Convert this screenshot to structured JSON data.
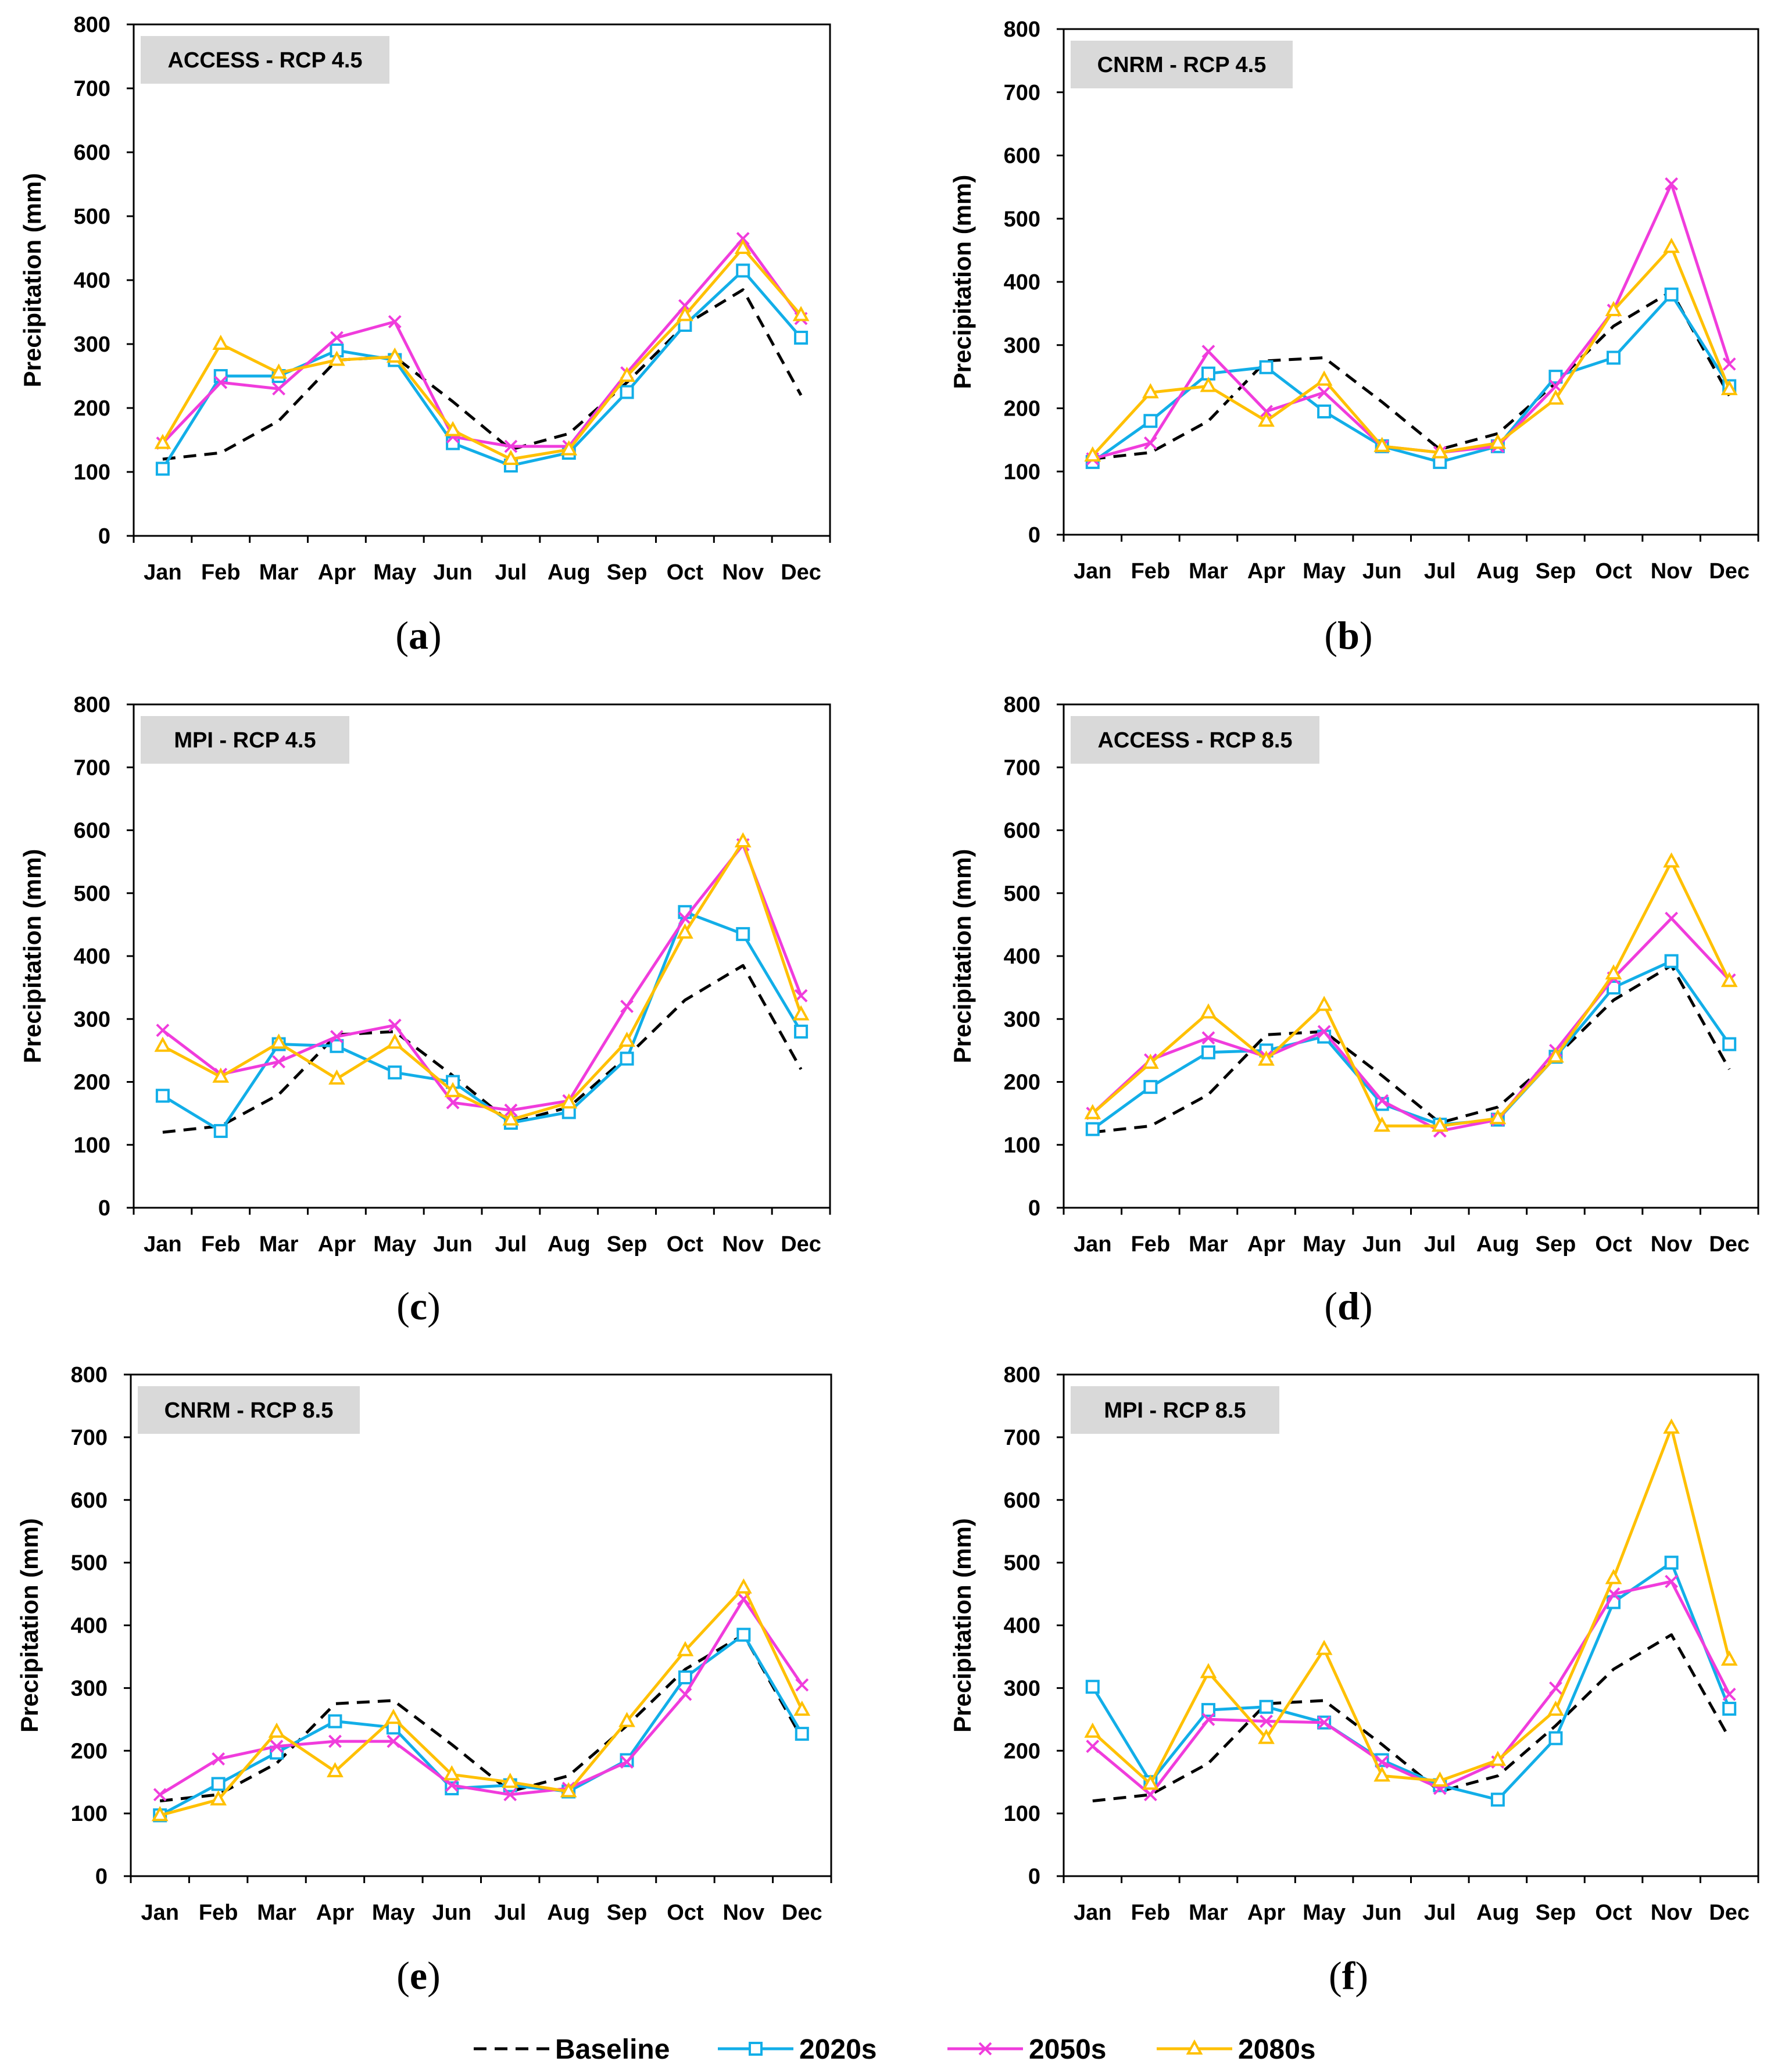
{
  "colors": {
    "baseline": "#000000",
    "s2020": "#12aee8",
    "s2050": "#f03cdc",
    "s2080": "#ffc000",
    "title_box": "#d9d9d9"
  },
  "legend": [
    {
      "key": "baseline",
      "label": "Baseline"
    },
    {
      "key": "s2020",
      "label": "2020s"
    },
    {
      "key": "s2050",
      "label": "2050s"
    },
    {
      "key": "s2080",
      "label": "2080s"
    }
  ],
  "chart_data": [
    {
      "type": "line",
      "caption": "a",
      "title": "ACCESS - RCP 4.5",
      "xlabel": "",
      "ylabel": "Precipitation (mm)",
      "ylim": [
        0,
        800
      ],
      "yticks": [
        0,
        100,
        200,
        300,
        400,
        500,
        600,
        700,
        800
      ],
      "categories": [
        "Jan",
        "Feb",
        "Mar",
        "Apr",
        "May",
        "Jun",
        "Jul",
        "Aug",
        "Sep",
        "Oct",
        "Nov",
        "Dec"
      ],
      "series": [
        {
          "name": "Baseline",
          "values": [
            120,
            130,
            180,
            275,
            280,
            210,
            135,
            160,
            240,
            330,
            385,
            220
          ]
        },
        {
          "name": "2020s",
          "values": [
            105,
            250,
            250,
            290,
            275,
            145,
            110,
            130,
            225,
            330,
            415,
            310
          ]
        },
        {
          "name": "2050s",
          "values": [
            145,
            240,
            230,
            310,
            335,
            155,
            140,
            140,
            255,
            360,
            465,
            340
          ]
        },
        {
          "name": "2080s",
          "values": [
            145,
            300,
            255,
            275,
            280,
            165,
            120,
            135,
            250,
            345,
            450,
            345
          ]
        }
      ]
    },
    {
      "type": "line",
      "caption": "b",
      "title": "CNRM - RCP 4.5",
      "xlabel": "",
      "ylabel": "Precipitation (mm)",
      "ylim": [
        0,
        800
      ],
      "yticks": [
        0,
        100,
        200,
        300,
        400,
        500,
        600,
        700,
        800
      ],
      "categories": [
        "Jan",
        "Feb",
        "Mar",
        "Apr",
        "May",
        "Jun",
        "Jul",
        "Aug",
        "Sep",
        "Oct",
        "Nov",
        "Dec"
      ],
      "series": [
        {
          "name": "Baseline",
          "values": [
            120,
            130,
            180,
            275,
            280,
            210,
            135,
            160,
            240,
            330,
            385,
            220
          ]
        },
        {
          "name": "2020s",
          "values": [
            115,
            180,
            255,
            265,
            195,
            140,
            115,
            140,
            250,
            280,
            380,
            235
          ]
        },
        {
          "name": "2050s",
          "values": [
            120,
            145,
            290,
            195,
            225,
            140,
            130,
            140,
            235,
            355,
            555,
            270
          ]
        },
        {
          "name": "2080s",
          "values": [
            125,
            225,
            235,
            180,
            245,
            140,
            130,
            145,
            215,
            355,
            455,
            230
          ]
        }
      ]
    },
    {
      "type": "line",
      "caption": "c",
      "title": "MPI - RCP 4.5",
      "xlabel": "",
      "ylabel": "Precipitation (mm)",
      "ylim": [
        0,
        800
      ],
      "yticks": [
        0,
        100,
        200,
        300,
        400,
        500,
        600,
        700,
        800
      ],
      "categories": [
        "Jan",
        "Feb",
        "Mar",
        "Apr",
        "May",
        "Jun",
        "Jul",
        "Aug",
        "Sep",
        "Oct",
        "Nov",
        "Dec"
      ],
      "series": [
        {
          "name": "Baseline",
          "values": [
            120,
            130,
            180,
            275,
            280,
            210,
            135,
            160,
            240,
            330,
            385,
            220
          ]
        },
        {
          "name": "2020s",
          "values": [
            178,
            122,
            260,
            257,
            215,
            200,
            135,
            152,
            237,
            470,
            435,
            280
          ]
        },
        {
          "name": "2050s",
          "values": [
            282,
            212,
            232,
            272,
            290,
            167,
            155,
            170,
            320,
            460,
            577,
            337
          ]
        },
        {
          "name": "2080s",
          "values": [
            257,
            208,
            262,
            205,
            262,
            185,
            140,
            167,
            265,
            437,
            582,
            307
          ]
        }
      ]
    },
    {
      "type": "line",
      "caption": "d",
      "title": "ACCESS - RCP 8.5",
      "xlabel": "",
      "ylabel": "Precipitation (mm)",
      "ylim": [
        0,
        800
      ],
      "yticks": [
        0,
        100,
        200,
        300,
        400,
        500,
        600,
        700,
        800
      ],
      "categories": [
        "Jan",
        "Feb",
        "Mar",
        "Apr",
        "May",
        "Jun",
        "Jul",
        "Aug",
        "Sep",
        "Oct",
        "Nov",
        "Dec"
      ],
      "series": [
        {
          "name": "Baseline",
          "values": [
            120,
            130,
            180,
            275,
            280,
            210,
            135,
            160,
            240,
            330,
            385,
            220
          ]
        },
        {
          "name": "2020s",
          "values": [
            125,
            192,
            247,
            250,
            272,
            165,
            132,
            140,
            240,
            350,
            392,
            260
          ]
        },
        {
          "name": "2050s",
          "values": [
            150,
            235,
            270,
            240,
            280,
            170,
            122,
            140,
            250,
            365,
            460,
            362
          ]
        },
        {
          "name": "2080s",
          "values": [
            150,
            230,
            310,
            235,
            322,
            130,
            130,
            142,
            240,
            372,
            550,
            360
          ]
        }
      ]
    },
    {
      "type": "line",
      "caption": "e",
      "title": "CNRM - RCP 8.5",
      "xlabel": "",
      "ylabel": "Precipitation (mm)",
      "ylim": [
        0,
        800
      ],
      "yticks": [
        0,
        100,
        200,
        300,
        400,
        500,
        600,
        700,
        800
      ],
      "categories": [
        "Jan",
        "Feb",
        "Mar",
        "Apr",
        "May",
        "Jun",
        "Jul",
        "Aug",
        "Sep",
        "Oct",
        "Nov",
        "Dec"
      ],
      "series": [
        {
          "name": "Baseline",
          "values": [
            120,
            130,
            180,
            275,
            280,
            210,
            135,
            160,
            240,
            330,
            385,
            220
          ]
        },
        {
          "name": "2020s",
          "values": [
            97,
            147,
            197,
            247,
            237,
            140,
            145,
            135,
            185,
            317,
            385,
            227
          ]
        },
        {
          "name": "2050s",
          "values": [
            130,
            187,
            207,
            215,
            215,
            145,
            130,
            140,
            182,
            290,
            442,
            305
          ]
        },
        {
          "name": "2080s",
          "values": [
            97,
            122,
            230,
            167,
            252,
            162,
            150,
            135,
            247,
            360,
            460,
            265
          ]
        }
      ]
    },
    {
      "type": "line",
      "caption": "f",
      "title": "MPI - RCP 8.5",
      "xlabel": "",
      "ylabel": "Precipitation (mm)",
      "ylim": [
        0,
        800
      ],
      "yticks": [
        0,
        100,
        200,
        300,
        400,
        500,
        600,
        700,
        800
      ],
      "categories": [
        "Jan",
        "Feb",
        "Mar",
        "Apr",
        "May",
        "Jun",
        "Jul",
        "Aug",
        "Sep",
        "Oct",
        "Nov",
        "Dec"
      ],
      "series": [
        {
          "name": "Baseline",
          "values": [
            120,
            130,
            180,
            275,
            280,
            210,
            135,
            160,
            240,
            330,
            385,
            220
          ]
        },
        {
          "name": "2020s",
          "values": [
            302,
            150,
            265,
            270,
            245,
            185,
            145,
            122,
            220,
            437,
            500,
            267
          ]
        },
        {
          "name": "2050s",
          "values": [
            207,
            130,
            250,
            247,
            245,
            182,
            140,
            182,
            300,
            450,
            470,
            290
          ]
        },
        {
          "name": "2080s",
          "values": [
            230,
            147,
            325,
            220,
            362,
            160,
            152,
            185,
            265,
            475,
            715,
            345
          ]
        }
      ]
    }
  ]
}
